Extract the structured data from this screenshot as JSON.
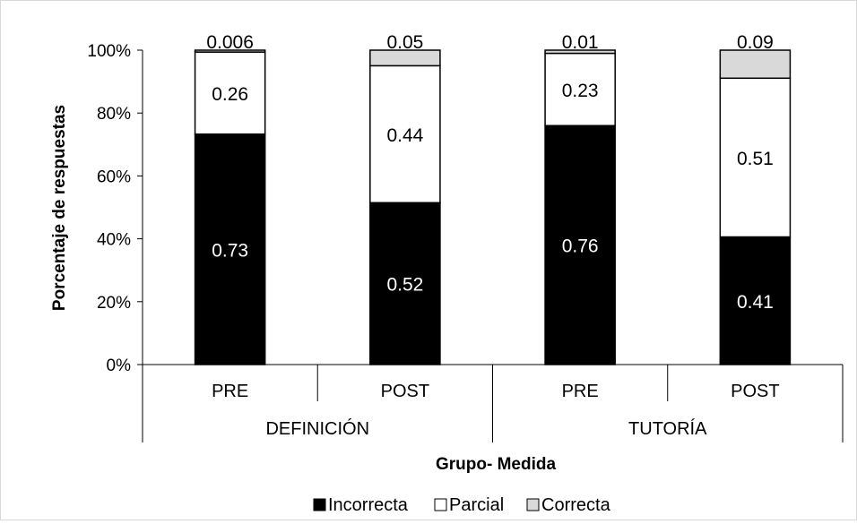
{
  "chart_data": {
    "type": "bar",
    "stacked": "percent",
    "groups": [
      {
        "label": "DEFINICIÓN",
        "categories": [
          "PRE",
          "POST"
        ]
      },
      {
        "label": "TUTORÍA",
        "categories": [
          "PRE",
          "POST"
        ]
      }
    ],
    "series": [
      {
        "name": "Incorrecta",
        "color": "#000000",
        "values": [
          0.73,
          0.52,
          0.76,
          0.41
        ],
        "labels": [
          "0.73",
          "0.52",
          "0.76",
          "0.41"
        ]
      },
      {
        "name": "Parcial",
        "color": "#ffffff",
        "values": [
          0.26,
          0.44,
          0.23,
          0.51
        ],
        "labels": [
          "0.26",
          "0.44",
          "0.23",
          "0.51"
        ]
      },
      {
        "name": "Correcta",
        "color": "#d9d9d9",
        "values": [
          0.006,
          0.05,
          0.01,
          0.09
        ],
        "labels": [
          "0.006",
          "0.05",
          "0.01",
          "0.09"
        ]
      }
    ],
    "y_ticks": [
      "0%",
      "20%",
      "40%",
      "60%",
      "80%",
      "100%"
    ],
    "ylim": [
      0,
      1
    ],
    "ylabel": "Porcentaje de respuestas",
    "xlabel": "Grupo- Medida",
    "legend_position": "bottom",
    "grid": false
  }
}
